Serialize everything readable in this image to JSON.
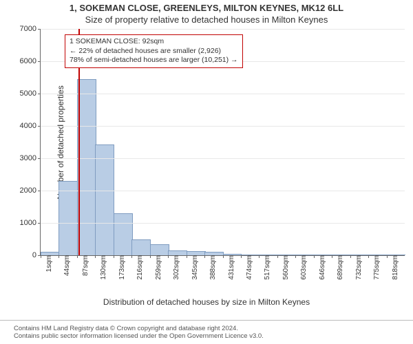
{
  "title_main": "1, SOKEMAN CLOSE, GREENLEYS, MILTON KEYNES, MK12 6LL",
  "title_sub": "Size of property relative to detached houses in Milton Keynes",
  "ylabel": "Number of detached properties",
  "xlabel": "Distribution of detached houses by size in Milton Keynes",
  "footer_line1": "Contains HM Land Registry data © Crown copyright and database right 2024.",
  "footer_line2": "Contains public sector information licensed under the Open Government Licence v3.0.",
  "chart": {
    "type": "histogram",
    "xlim_sqm": [
      1,
      880
    ],
    "ylim": [
      0,
      7000
    ],
    "ytick_step": 1000,
    "xtick_step_sqm": 43,
    "xtick_unit": "sqm",
    "bar_color": "#b9cde5",
    "bar_border": "#7f9cc0",
    "grid_color": "#e8e8e8",
    "bar_count": 20,
    "bar_values": [
      80,
      2280,
      5420,
      3400,
      1270,
      470,
      310,
      120,
      100,
      90,
      30,
      10,
      10,
      5,
      5,
      5,
      0,
      0,
      5,
      0
    ],
    "marker_sqm": 92,
    "marker_color": "#c00000",
    "annotation": {
      "line1": "1 SOKEMAN CLOSE: 92sqm",
      "line2": "← 22% of detached houses are smaller (2,926)",
      "line3": "78% of semi-detached houses are larger (10,251) →"
    },
    "title_fontsize": 13,
    "label_fontsize": 12,
    "tick_fontsize": 10,
    "annot_fontsize": 10.5,
    "background_color": "#ffffff"
  }
}
